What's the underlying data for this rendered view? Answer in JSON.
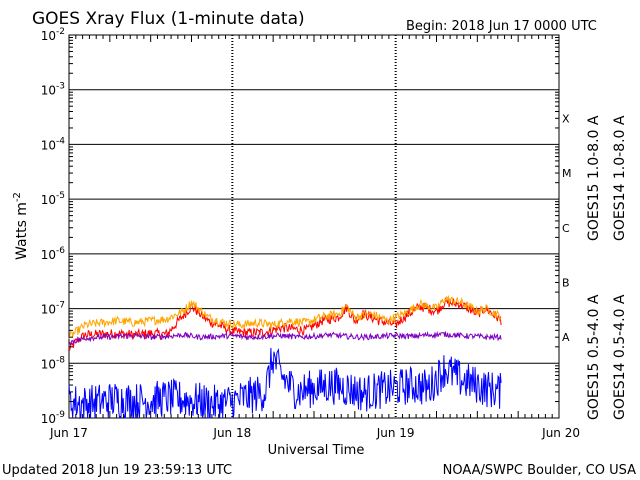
{
  "chart_data": {
    "type": "line",
    "title": "GOES Xray Flux (1-minute data)",
    "begin_label": "Begin:  2018 Jun 17 0000 UTC",
    "ylabel": "Watts m",
    "ylabel_exp": "-2",
    "xlabel": "Universal Time",
    "y_scale": "log",
    "ylim": [
      1e-09,
      0.01
    ],
    "y_ticks": [
      {
        "value": 0.01,
        "base": "10",
        "exp": "-2"
      },
      {
        "value": 0.001,
        "base": "10",
        "exp": "-3"
      },
      {
        "value": 0.0001,
        "base": "10",
        "exp": "-4"
      },
      {
        "value": 1e-05,
        "base": "10",
        "exp": "-5"
      },
      {
        "value": 1e-06,
        "base": "10",
        "exp": "-6"
      },
      {
        "value": 1e-07,
        "base": "10",
        "exp": "-7"
      },
      {
        "value": 1e-08,
        "base": "10",
        "exp": "-8"
      },
      {
        "value": 1e-09,
        "base": "10",
        "exp": "-9"
      }
    ],
    "x_range_days": [
      0,
      3
    ],
    "x_ticks": [
      {
        "day": 0,
        "label": "Jun 17"
      },
      {
        "day": 1,
        "label": "Jun 18"
      },
      {
        "day": 2,
        "label": "Jun 19"
      },
      {
        "day": 3,
        "label": "Jun 20"
      }
    ],
    "flare_classes": [
      {
        "label": "X",
        "value": 0.0003
      },
      {
        "label": "M",
        "value": 3e-05
      },
      {
        "label": "C",
        "value": 3e-06
      },
      {
        "label": "B",
        "value": 3e-07
      },
      {
        "label": "A",
        "value": 3e-08
      }
    ],
    "series": [
      {
        "name": "GOES15 1.0-8.0 A",
        "color": "#ff0000",
        "points": [
          [
            0,
            1.8e-08
          ],
          [
            0.05,
            2.6e-08
          ],
          [
            0.1,
            3.3e-08
          ],
          [
            0.2,
            3.4e-08
          ],
          [
            0.3,
            3.5e-08
          ],
          [
            0.4,
            3.3e-08
          ],
          [
            0.5,
            3.5e-08
          ],
          [
            0.6,
            3.4e-08
          ],
          [
            0.7,
            7.5e-08
          ],
          [
            0.75,
            1.1e-07
          ],
          [
            0.85,
            6e-08
          ],
          [
            0.95,
            4.5e-08
          ],
          [
            1.0,
            3.8e-08
          ],
          [
            1.1,
            3.6e-08
          ],
          [
            1.2,
            3.7e-08
          ],
          [
            1.3,
            4.5e-08
          ],
          [
            1.45,
            4e-08
          ],
          [
            1.55,
            6e-08
          ],
          [
            1.65,
            7e-08
          ],
          [
            1.7,
            1.05e-07
          ],
          [
            1.75,
            6e-08
          ],
          [
            1.8,
            8e-08
          ],
          [
            1.9,
            6e-08
          ],
          [
            2.0,
            5e-08
          ],
          [
            2.05,
            7e-08
          ],
          [
            2.15,
            1.1e-07
          ],
          [
            2.25,
            9e-08
          ],
          [
            2.3,
            1.3e-07
          ],
          [
            2.4,
            1.2e-07
          ],
          [
            2.5,
            8e-08
          ],
          [
            2.55,
            1e-07
          ],
          [
            2.65,
            6e-08
          ]
        ]
      },
      {
        "name": "GOES14 1.0-8.0 A",
        "color": "#ffa500",
        "points": [
          [
            0,
            3e-08
          ],
          [
            0.1,
            5e-08
          ],
          [
            0.2,
            5.5e-08
          ],
          [
            0.3,
            6e-08
          ],
          [
            0.4,
            5.5e-08
          ],
          [
            0.5,
            6e-08
          ],
          [
            0.6,
            6.5e-08
          ],
          [
            0.7,
            9e-08
          ],
          [
            0.75,
            1.3e-07
          ],
          [
            0.85,
            7e-08
          ],
          [
            0.95,
            5.5e-08
          ],
          [
            1.05,
            5e-08
          ],
          [
            1.15,
            5.5e-08
          ],
          [
            1.25,
            5e-08
          ],
          [
            1.35,
            6e-08
          ],
          [
            1.45,
            5.5e-08
          ],
          [
            1.55,
            7e-08
          ],
          [
            1.65,
            8e-08
          ],
          [
            1.7,
            1.1e-07
          ],
          [
            1.75,
            7e-08
          ],
          [
            1.85,
            8e-08
          ],
          [
            1.95,
            6e-08
          ],
          [
            2.05,
            8e-08
          ],
          [
            2.15,
            1.2e-07
          ],
          [
            2.25,
            1e-07
          ],
          [
            2.3,
            1.5e-07
          ],
          [
            2.4,
            1.3e-07
          ],
          [
            2.5,
            9e-08
          ],
          [
            2.55,
            1e-07
          ],
          [
            2.65,
            7e-08
          ]
        ]
      },
      {
        "name": "GOES15 0.5-4.0 A",
        "color": "#0000ff",
        "points": [
          [
            0,
            2e-09
          ],
          [
            0.1,
            1.8e-09
          ],
          [
            0.2,
            2e-09
          ],
          [
            0.3,
            2.2e-09
          ],
          [
            0.4,
            2e-09
          ],
          [
            0.5,
            2.1e-09
          ],
          [
            0.6,
            2.3e-09
          ],
          [
            0.7,
            2.2e-09
          ],
          [
            0.8,
            2e-09
          ],
          [
            0.9,
            1.8e-09
          ],
          [
            1.0,
            2e-09
          ],
          [
            1.1,
            2.5e-09
          ],
          [
            1.2,
            3e-09
          ],
          [
            1.25,
            1.3e-08
          ],
          [
            1.3,
            6e-09
          ],
          [
            1.35,
            4e-09
          ],
          [
            1.4,
            3e-09
          ],
          [
            1.5,
            3.5e-09
          ],
          [
            1.6,
            4e-09
          ],
          [
            1.7,
            3.5e-09
          ],
          [
            1.8,
            2.8e-09
          ],
          [
            1.9,
            3.2e-09
          ],
          [
            2.0,
            3.5e-09
          ],
          [
            2.1,
            4e-09
          ],
          [
            2.2,
            3.5e-09
          ],
          [
            2.3,
            8e-09
          ],
          [
            2.4,
            5e-09
          ],
          [
            2.5,
            4e-09
          ],
          [
            2.55,
            3.5e-09
          ],
          [
            2.65,
            3e-09
          ]
        ]
      },
      {
        "name": "GOES14 0.5-4.0 A",
        "color": "#7b00c0",
        "points": [
          [
            0,
            2.4e-08
          ],
          [
            0.1,
            2.9e-08
          ],
          [
            0.2,
            3e-08
          ],
          [
            0.3,
            3.1e-08
          ],
          [
            0.4,
            3.2e-08
          ],
          [
            0.5,
            3e-08
          ],
          [
            0.6,
            3.1e-08
          ],
          [
            0.7,
            3.3e-08
          ],
          [
            0.8,
            3e-08
          ],
          [
            0.9,
            3.1e-08
          ],
          [
            1.0,
            3.2e-08
          ],
          [
            1.1,
            3e-08
          ],
          [
            1.2,
            3.1e-08
          ],
          [
            1.3,
            3.2e-08
          ],
          [
            1.4,
            3e-08
          ],
          [
            1.5,
            3.1e-08
          ],
          [
            1.6,
            3.3e-08
          ],
          [
            1.7,
            3.1e-08
          ],
          [
            1.8,
            3e-08
          ],
          [
            1.9,
            3.1e-08
          ],
          [
            2.0,
            3.2e-08
          ],
          [
            2.1,
            3.1e-08
          ],
          [
            2.2,
            3.3e-08
          ],
          [
            2.3,
            3.4e-08
          ],
          [
            2.4,
            3.2e-08
          ],
          [
            2.5,
            3.1e-08
          ],
          [
            2.55,
            3e-08
          ],
          [
            2.65,
            3e-08
          ]
        ]
      }
    ],
    "grid": true
  },
  "footer": {
    "updated": "Updated 2018 Jun 19 23:59:13 UTC",
    "credit": "NOAA/SWPC Boulder, CO USA"
  }
}
